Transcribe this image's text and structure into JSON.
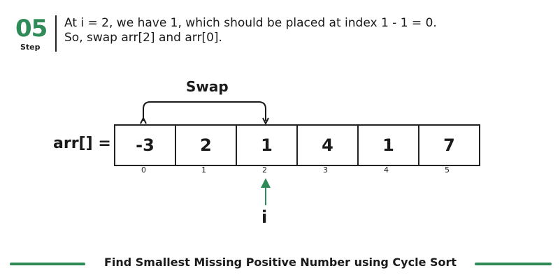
{
  "step": {
    "number": "05",
    "label": "Step"
  },
  "description": {
    "line1": "At i = 2, we have 1, which should be placed at index 1 - 1 = 0.",
    "line2": "So, swap arr[2] and arr[0]."
  },
  "swap_label": "Swap",
  "array": {
    "label": "arr[] =",
    "values": [
      "-3",
      "2",
      "1",
      "4",
      "1",
      "7"
    ],
    "indices": [
      "0",
      "1",
      "2",
      "3",
      "4",
      "5"
    ]
  },
  "pointer_label": "i",
  "footer_title": "Find Smallest Missing Positive Number using Cycle Sort",
  "colors": {
    "accent": "#2e8b57",
    "text": "#1a1a1a"
  }
}
